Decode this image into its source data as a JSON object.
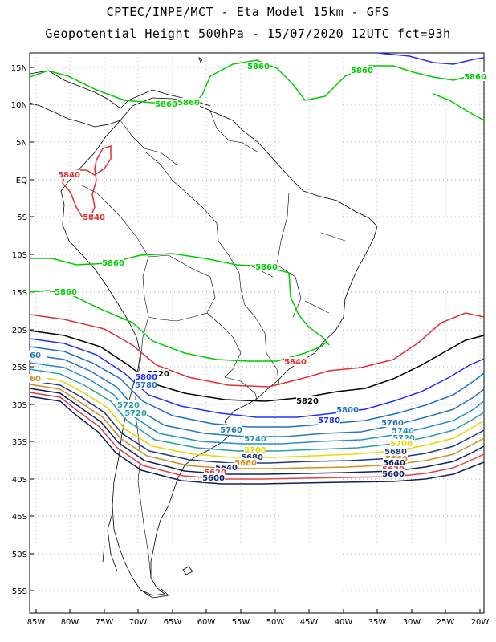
{
  "title_line1": "CPTEC/INPE/MCT -  Eta Model 15km - GFS",
  "title_line2": "Geopotential Height 500hPa - 15/07/2020 12UTC fct=93h",
  "lat_labels": [
    "15N",
    "10N",
    "5N",
    "EQ",
    "5S",
    "10S",
    "15S",
    "20S",
    "25S",
    "30S",
    "35S",
    "40S",
    "45S",
    "50S",
    "55S"
  ],
  "lon_labels": [
    "85W",
    "80W",
    "75W",
    "70W",
    "65W",
    "60W",
    "55W",
    "50W",
    "45W",
    "40W",
    "35W",
    "30W",
    "25W",
    "20W"
  ],
  "contour_labels": [
    {
      "text": "5860",
      "color": "#00cc00"
    },
    {
      "text": "5860",
      "color": "#00cc00"
    },
    {
      "text": "5860",
      "color": "#00cc00"
    },
    {
      "text": "5860",
      "color": "#00cc00"
    },
    {
      "text": "5860",
      "color": "#00cc00"
    },
    {
      "text": "5860",
      "color": "#00cc00"
    },
    {
      "text": "5860",
      "color": "#00cc00"
    },
    {
      "text": "5860",
      "color": "#00cc00"
    },
    {
      "text": "5840",
      "color": "#e03030"
    },
    {
      "text": "5840",
      "color": "#e03030"
    },
    {
      "text": "5840",
      "color": "#e03030"
    },
    {
      "text": "5820",
      "color": "#000000"
    },
    {
      "text": "5820",
      "color": "#000000"
    },
    {
      "text": "5800",
      "color": "#2030ff"
    },
    {
      "text": "5800",
      "color": "#1e6ec8"
    },
    {
      "text": "5780",
      "color": "#1e6ec8"
    },
    {
      "text": "5780",
      "color": "#2030ff"
    },
    {
      "text": "5760",
      "color": "#2878b4"
    },
    {
      "text": "5760",
      "color": "#2878b4"
    },
    {
      "text": "5740",
      "color": "#2890c8"
    },
    {
      "text": "5740",
      "color": "#2890c8"
    },
    {
      "text": "5720",
      "color": "#2ca0a0"
    },
    {
      "text": "5720",
      "color": "#2ca0a0"
    },
    {
      "text": "5720",
      "color": "#2ca0a0"
    },
    {
      "text": "5700",
      "color": "#e8d800"
    },
    {
      "text": "5700",
      "color": "#e8d800"
    },
    {
      "text": "5680",
      "color": "#203a80"
    },
    {
      "text": "5680",
      "color": "#203a80"
    },
    {
      "text": "5660",
      "color": "#d09020"
    },
    {
      "text": "5660",
      "color": "#d09020"
    },
    {
      "text": "5640",
      "color": "#102060"
    },
    {
      "text": "5640",
      "color": "#102060"
    },
    {
      "text": "5620",
      "color": "#e04040"
    },
    {
      "text": "5620",
      "color": "#e04040"
    },
    {
      "text": "5600",
      "color": "#102060"
    },
    {
      "text": "5600",
      "color": "#102060"
    },
    {
      "text": "60",
      "color": "#2878b4"
    },
    {
      "text": "60",
      "color": "#d09020"
    }
  ],
  "colors": {
    "c5860": "#00cc00",
    "c5840": "#e03030",
    "c5820": "#000000",
    "c5800": "#2030ff",
    "c5780": "#1e6ec8",
    "c5760": "#2878b4",
    "c5740": "#2890c8",
    "c5720": "#2ca0a0",
    "c5700": "#e8d800",
    "c5680": "#203a80",
    "c5660": "#d09020",
    "c5640": "#102060",
    "c5620": "#e04040",
    "c5600": "#102060",
    "coast": "#000000",
    "grid": "#999999",
    "border": "#000000"
  }
}
